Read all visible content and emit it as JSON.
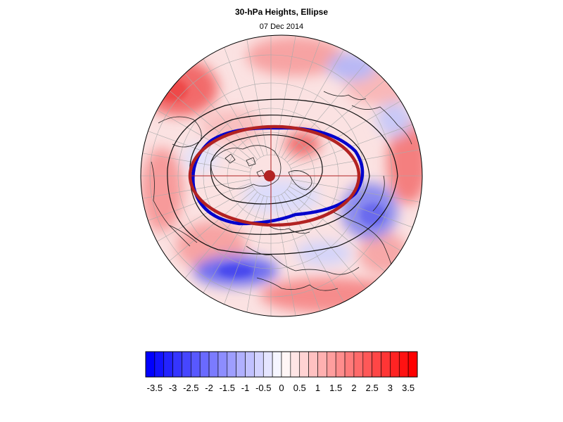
{
  "header": {
    "title": "30-hPa Heights, Ellipse",
    "date": "07 Dec 2014"
  },
  "colorbar": {
    "min": -3.75,
    "max": 3.75,
    "step": 0.25,
    "labels": [
      "-3.5",
      "-3",
      "-2.5",
      "-2",
      "-1.5",
      "-1",
      "-0.5",
      "0",
      "0.5",
      "1",
      "1.5",
      "2",
      "2.5",
      "3",
      "3.5"
    ],
    "negative_color": "#0000ff",
    "positive_color": "#ff0000",
    "neutral_color": "#ffffff"
  },
  "map": {
    "projection": "polar-stereographic",
    "hemisphere": "north",
    "ellipse_observed_color": "#0000cc",
    "ellipse_climatology_color": "#b22222",
    "center_marker_color": "#b22222"
  }
}
